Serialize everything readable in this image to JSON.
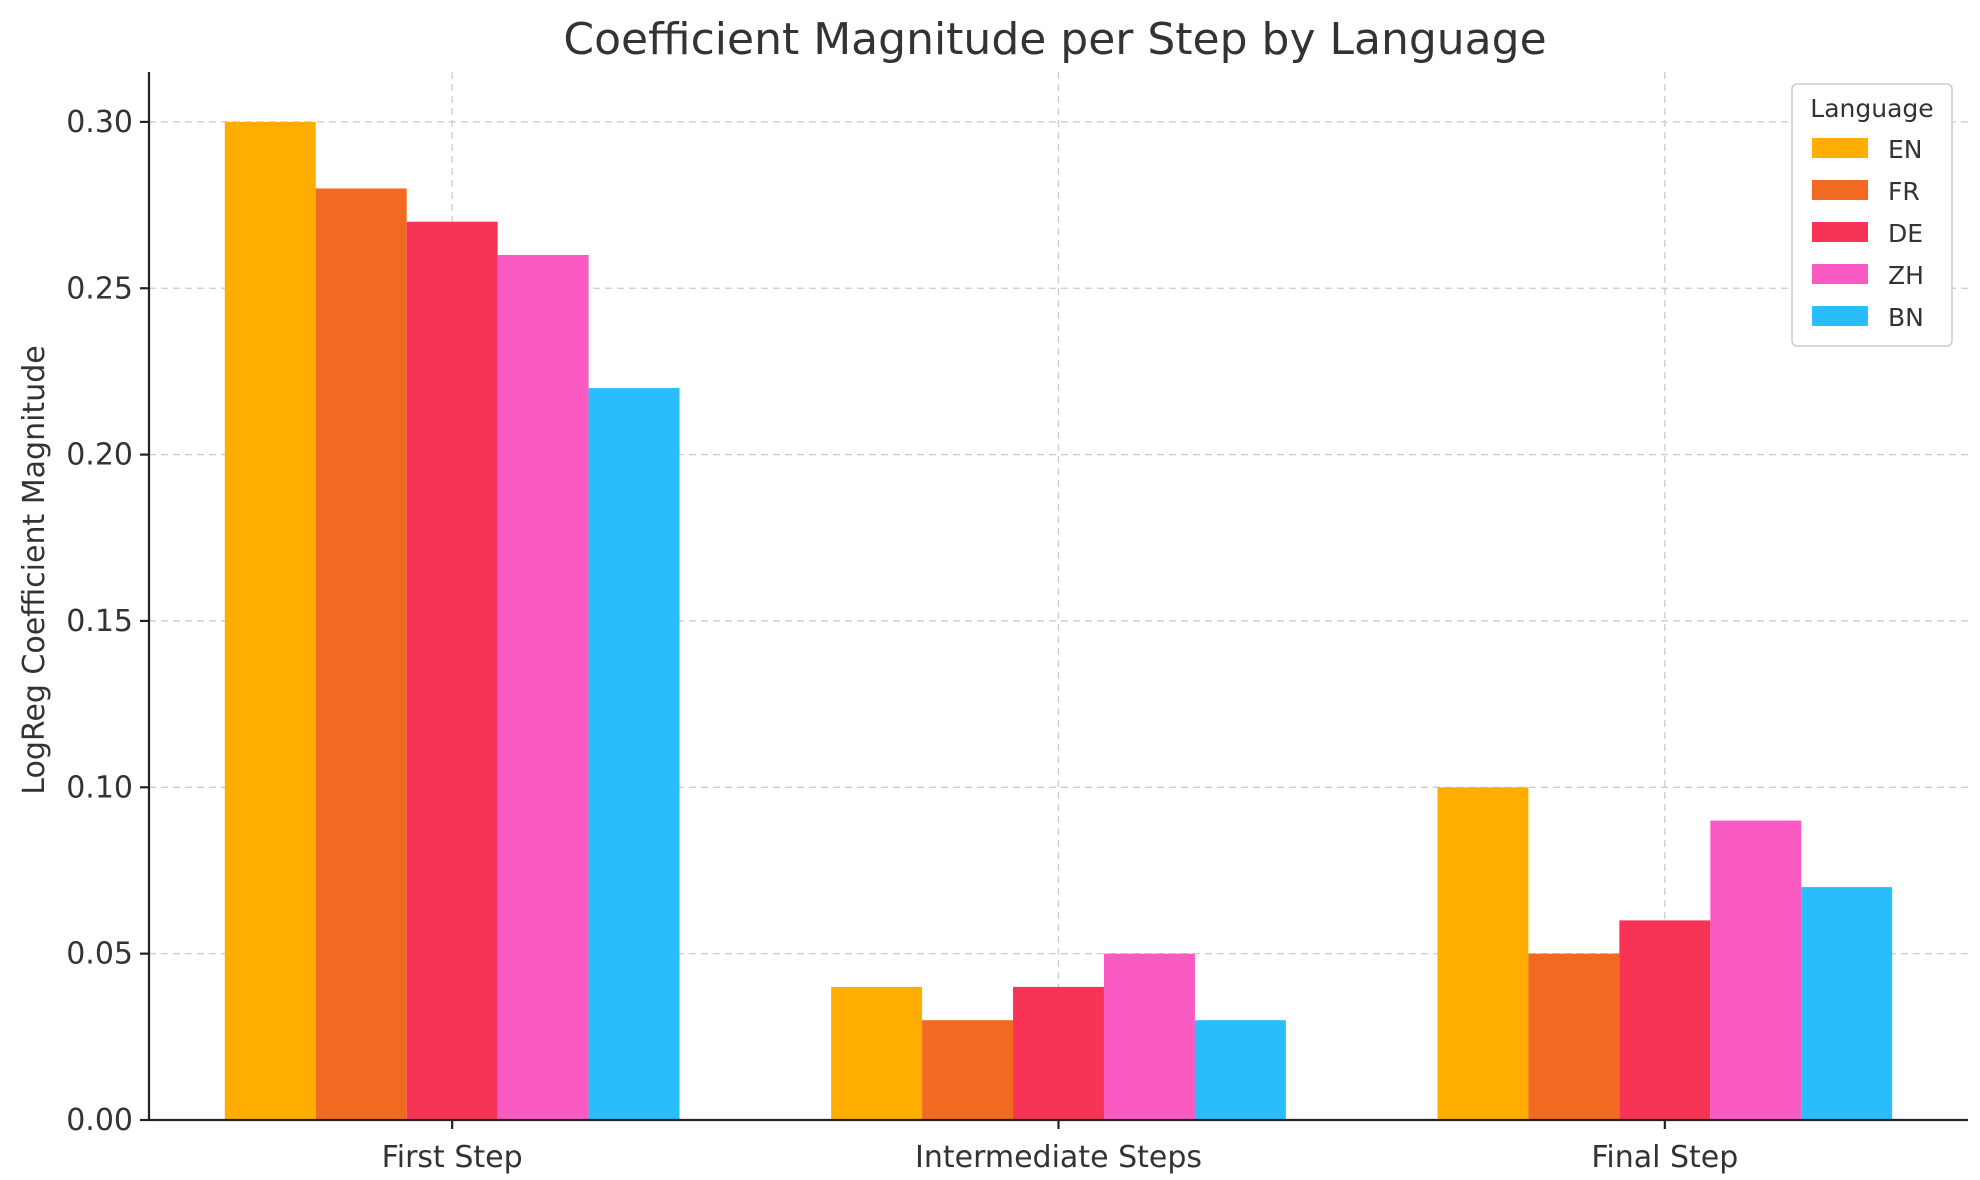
{
  "chart_data": {
    "type": "bar",
    "title": "Coefficient Magnitude per Step by Language",
    "xlabel": "",
    "ylabel": "LogReg Coefficient Magnitude",
    "categories": [
      "First Step",
      "Intermediate Steps",
      "Final Step"
    ],
    "series": [
      {
        "name": "EN",
        "color": "#FFAE00",
        "values": [
          0.3,
          0.04,
          0.1
        ]
      },
      {
        "name": "FR",
        "color": "#F26A22",
        "values": [
          0.28,
          0.03,
          0.05
        ]
      },
      {
        "name": "DE",
        "color": "#F73455",
        "values": [
          0.27,
          0.04,
          0.06
        ]
      },
      {
        "name": "ZH",
        "color": "#F95BC3",
        "values": [
          0.26,
          0.05,
          0.09
        ]
      },
      {
        "name": "BN",
        "color": "#2ABDFB",
        "values": [
          0.22,
          0.03,
          0.07
        ]
      }
    ],
    "ylim": [
      0,
      0.315
    ],
    "yticks": [
      "0.00",
      "0.05",
      "0.10",
      "0.15",
      "0.20",
      "0.25",
      "0.30"
    ],
    "grid": true,
    "legend": {
      "title": "Language",
      "placement": "top-right"
    }
  }
}
